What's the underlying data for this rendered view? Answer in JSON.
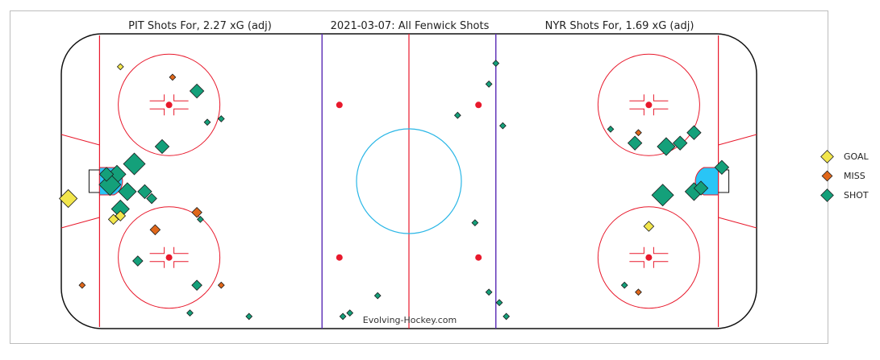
{
  "titles": {
    "left": "PIT Shots For, 2.27 xG (adj)",
    "center": "2021-03-07: All Fenwick Shots",
    "right": "NYR Shots For, 1.69 xG (adj)"
  },
  "watermark": "Evolving-Hockey.com",
  "legend": [
    {
      "label": "GOAL",
      "color": "#f2e64c"
    },
    {
      "label": "MISS",
      "color": "#e0671a"
    },
    {
      "label": "SHOT",
      "color": "#14a07a"
    }
  ],
  "colors": {
    "goal": "#f2e64c",
    "miss": "#e0671a",
    "shot": "#14a07a",
    "red_line": "#e8192c",
    "blue_line": "#5a2bb5",
    "crease": "#29c5f6",
    "center_circle": "#29b6e6"
  },
  "chart_data": {
    "type": "scatter",
    "title": "2021-03-07: All Fenwick Shots",
    "xlabel": "",
    "ylabel": "",
    "xlim": [
      -100,
      100
    ],
    "ylim": [
      -42.5,
      42.5
    ],
    "series": [
      {
        "name": "PIT Shots For, 2.27 xG (adj)",
        "points": [
          {
            "x": -83,
            "y": 33,
            "event": "GOAL",
            "size": 1
          },
          {
            "x": -68,
            "y": 30,
            "event": "MISS",
            "size": 1
          },
          {
            "x": -61,
            "y": 26,
            "event": "SHOT",
            "size": 3
          },
          {
            "x": -58,
            "y": 17,
            "event": "SHOT",
            "size": 1
          },
          {
            "x": -54,
            "y": 18,
            "event": "SHOT",
            "size": 1
          },
          {
            "x": -71,
            "y": 10,
            "event": "SHOT",
            "size": 3
          },
          {
            "x": -84,
            "y": 2,
            "event": "SHOT",
            "size": 4
          },
          {
            "x": -79,
            "y": 5,
            "event": "SHOT",
            "size": 5
          },
          {
            "x": -86,
            "y": -1,
            "event": "SHOT",
            "size": 5
          },
          {
            "x": -81,
            "y": -3,
            "event": "SHOT",
            "size": 4
          },
          {
            "x": -87,
            "y": 2,
            "event": "SHOT",
            "size": 3
          },
          {
            "x": -76,
            "y": -3,
            "event": "SHOT",
            "size": 3
          },
          {
            "x": -74,
            "y": -5,
            "event": "SHOT",
            "size": 2
          },
          {
            "x": -98,
            "y": -5,
            "event": "GOAL",
            "size": 4
          },
          {
            "x": -83,
            "y": -8,
            "event": "SHOT",
            "size": 4
          },
          {
            "x": -85,
            "y": -11,
            "event": "GOAL",
            "size": 2
          },
          {
            "x": -83,
            "y": -10,
            "event": "GOAL",
            "size": 2
          },
          {
            "x": -61,
            "y": -9,
            "event": "MISS",
            "size": 2
          },
          {
            "x": -60,
            "y": -11,
            "event": "SHOT",
            "size": 1
          },
          {
            "x": -73,
            "y": -14,
            "event": "MISS",
            "size": 2
          },
          {
            "x": -78,
            "y": -23,
            "event": "SHOT",
            "size": 2
          },
          {
            "x": -94,
            "y": -30,
            "event": "MISS",
            "size": 1
          },
          {
            "x": -61,
            "y": -30,
            "event": "SHOT",
            "size": 2
          },
          {
            "x": -54,
            "y": -30,
            "event": "MISS",
            "size": 1
          },
          {
            "x": -63,
            "y": -38,
            "event": "SHOT",
            "size": 1
          }
        ]
      },
      {
        "name": "NYR Shots For, 1.69 xG (adj)",
        "points": [
          {
            "x": -46,
            "y": -39,
            "event": "SHOT",
            "size": 1
          },
          {
            "x": -19,
            "y": -39,
            "event": "SHOT",
            "size": 1
          },
          {
            "x": -17,
            "y": -38,
            "event": "SHOT",
            "size": 1
          },
          {
            "x": -9,
            "y": -33,
            "event": "SHOT",
            "size": 1
          },
          {
            "x": 25,
            "y": 34,
            "event": "SHOT",
            "size": 1
          },
          {
            "x": 23,
            "y": 28,
            "event": "SHOT",
            "size": 1
          },
          {
            "x": 14,
            "y": 19,
            "event": "SHOT",
            "size": 1
          },
          {
            "x": 27,
            "y": 16,
            "event": "SHOT",
            "size": 1
          },
          {
            "x": 58,
            "y": 15,
            "event": "SHOT",
            "size": 1
          },
          {
            "x": 65,
            "y": 11,
            "event": "SHOT",
            "size": 3
          },
          {
            "x": 74,
            "y": 10,
            "event": "SHOT",
            "size": 4
          },
          {
            "x": 66,
            "y": 14,
            "event": "MISS",
            "size": 1
          },
          {
            "x": 82,
            "y": 14,
            "event": "SHOT",
            "size": 3
          },
          {
            "x": 78,
            "y": 11,
            "event": "SHOT",
            "size": 3
          },
          {
            "x": 73,
            "y": -4,
            "event": "SHOT",
            "size": 5
          },
          {
            "x": 82,
            "y": -3,
            "event": "SHOT",
            "size": 4
          },
          {
            "x": 90,
            "y": 4,
            "event": "SHOT",
            "size": 3
          },
          {
            "x": 84,
            "y": -2,
            "event": "SHOT",
            "size": 3
          },
          {
            "x": 19,
            "y": -12,
            "event": "SHOT",
            "size": 1
          },
          {
            "x": 69,
            "y": -13,
            "event": "GOAL",
            "size": 2
          },
          {
            "x": 62,
            "y": -30,
            "event": "SHOT",
            "size": 1
          },
          {
            "x": 23,
            "y": -32,
            "event": "SHOT",
            "size": 1
          },
          {
            "x": 26,
            "y": -35,
            "event": "SHOT",
            "size": 1
          },
          {
            "x": 28,
            "y": -39,
            "event": "SHOT",
            "size": 1
          },
          {
            "x": 66,
            "y": -32,
            "event": "MISS",
            "size": 1
          }
        ]
      }
    ]
  }
}
